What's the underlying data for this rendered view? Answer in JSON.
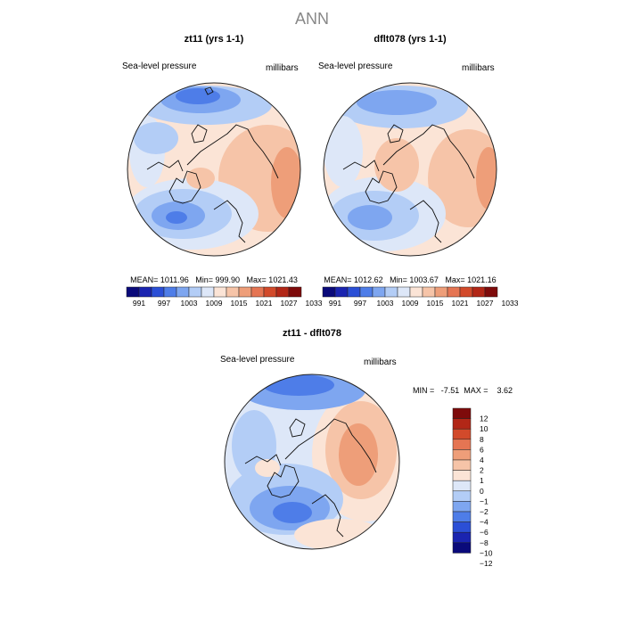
{
  "title": "ANN",
  "contour_colors": [
    "#0a0a7a",
    "#1a24b0",
    "#2b4fd6",
    "#4e7de8",
    "#7ea6f0",
    "#b3cdf6",
    "#dde7f8",
    "#fbe4d6",
    "#f6c4a8",
    "#ee9e79",
    "#e57553",
    "#d24a2b",
    "#b22717",
    "#7e0b0b"
  ],
  "diff_colors": [
    "#0a0a7a",
    "#1a24b0",
    "#2b4fd6",
    "#4e7de8",
    "#7ea6f0",
    "#b3cdf6",
    "#dde7f8",
    "#fbe4d6",
    "#f6c4a8",
    "#ee9e79",
    "#e57553",
    "#d24a2b",
    "#b22717",
    "#7e0b0b"
  ],
  "chart_data": [
    {
      "type": "heatmap",
      "projection": "north-polar-stereographic",
      "title": "zt11 (yrs 1-1)",
      "variable": "Sea-level pressure",
      "units": "millibars",
      "stats": "MEAN= 1011.96   Min= 999.90   Max= 1021.43",
      "mean": 1011.96,
      "min": 999.9,
      "max": 1021.43,
      "colorbar_labels": [
        "991",
        "997",
        "1003",
        "1009",
        "1015",
        "1021",
        "1027",
        "1033"
      ]
    },
    {
      "type": "heatmap",
      "projection": "north-polar-stereographic",
      "title": "dflt078 (yrs 1-1)",
      "variable": "Sea-level pressure",
      "units": "millibars",
      "stats": "MEAN= 1012.62   Min= 1003.67   Max= 1021.16",
      "mean": 1012.62,
      "min": 1003.67,
      "max": 1021.16,
      "colorbar_labels": [
        "991",
        "997",
        "1003",
        "1009",
        "1015",
        "1021",
        "1027",
        "1033"
      ]
    },
    {
      "type": "heatmap",
      "projection": "north-polar-stereographic",
      "title": "zt11 - dflt078",
      "variable": "Sea-level pressure",
      "units": "millibars",
      "stats": "MIN =   -7.51  MAX =    3.62",
      "min": -7.51,
      "max": 3.62,
      "colorbar_labels": [
        "12",
        "10",
        "8",
        "6",
        "4",
        "2",
        "1",
        "0",
        "−1",
        "−2",
        "−4",
        "−6",
        "−8",
        "−10",
        "−12"
      ]
    }
  ]
}
